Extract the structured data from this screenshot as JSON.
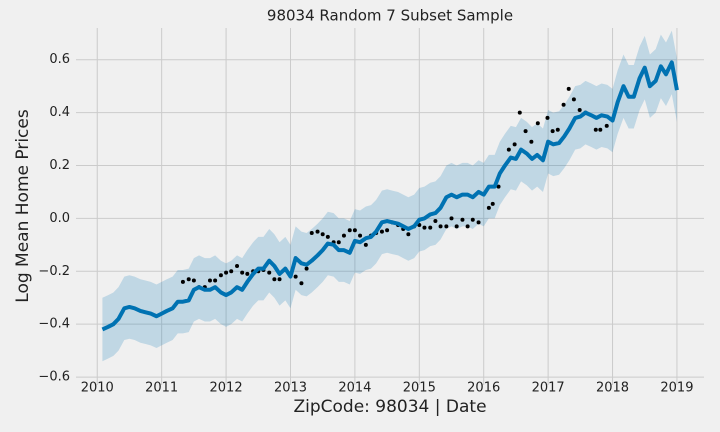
{
  "chart_data": {
    "type": "line",
    "title": "98034 Random 7 Subset Sample",
    "xlabel": "ZipCode: 98034 | Date",
    "ylabel": "Log Mean Home Prices",
    "xlim": [
      2009.67,
      2019.42
    ],
    "ylim": [
      -0.63,
      0.72
    ],
    "xticks": [
      2010,
      2011,
      2012,
      2013,
      2014,
      2015,
      2016,
      2017,
      2018,
      2019
    ],
    "yticks": [
      {
        "value": -0.6,
        "label": "−0.6"
      },
      {
        "value": -0.4,
        "label": "−0.4"
      },
      {
        "value": -0.2,
        "label": "−0.2"
      },
      {
        "value": 0,
        "label": "0.0"
      },
      0.2,
      0.4,
      0.6
    ],
    "grid": true,
    "x": [
      2010.08,
      2010.17,
      2010.25,
      2010.33,
      2010.42,
      2010.5,
      2010.58,
      2010.67,
      2010.75,
      2010.83,
      2010.92,
      2011,
      2011.08,
      2011.17,
      2011.25,
      2011.33,
      2011.42,
      2011.5,
      2011.58,
      2011.67,
      2011.75,
      2011.83,
      2011.92,
      2012,
      2012.08,
      2012.17,
      2012.25,
      2012.33,
      2012.42,
      2012.5,
      2012.58,
      2012.67,
      2012.75,
      2012.83,
      2012.92,
      2013,
      2013.08,
      2013.17,
      2013.25,
      2013.33,
      2013.42,
      2013.5,
      2013.58,
      2013.67,
      2013.75,
      2013.83,
      2013.92,
      2014,
      2014.08,
      2014.17,
      2014.25,
      2014.33,
      2014.42,
      2014.5,
      2014.58,
      2014.67,
      2014.75,
      2014.83,
      2014.92,
      2015,
      2015.08,
      2015.17,
      2015.25,
      2015.33,
      2015.42,
      2015.5,
      2015.58,
      2015.67,
      2015.75,
      2015.83,
      2015.92,
      2016,
      2016.08,
      2016.17,
      2016.25,
      2016.33,
      2016.42,
      2016.5,
      2016.58,
      2016.67,
      2016.75,
      2016.83,
      2016.92,
      2017,
      2017.08,
      2017.17,
      2017.25,
      2017.33,
      2017.42,
      2017.5,
      2017.58,
      2017.67,
      2017.75,
      2017.83,
      2017.92,
      2018,
      2018.08,
      2018.17,
      2018.25,
      2018.33,
      2018.42,
      2018.5,
      2018.58,
      2018.67,
      2018.75,
      2018.83,
      2018.92,
      2019
    ],
    "series": [
      {
        "color": "#0072B2",
        "values": [
          -0.42,
          -0.41,
          -0.4,
          -0.38,
          -0.34,
          -0.335,
          -0.34,
          -0.35,
          -0.355,
          -0.36,
          -0.37,
          -0.36,
          -0.35,
          -0.34,
          -0.315,
          -0.315,
          -0.31,
          -0.27,
          -0.26,
          -0.27,
          -0.27,
          -0.26,
          -0.28,
          -0.29,
          -0.28,
          -0.26,
          -0.27,
          -0.24,
          -0.21,
          -0.19,
          -0.19,
          -0.16,
          -0.18,
          -0.21,
          -0.19,
          -0.22,
          -0.15,
          -0.17,
          -0.175,
          -0.16,
          -0.14,
          -0.12,
          -0.095,
          -0.1,
          -0.12,
          -0.12,
          -0.13,
          -0.085,
          -0.09,
          -0.075,
          -0.07,
          -0.05,
          -0.015,
          -0.01,
          -0.015,
          -0.02,
          -0.03,
          -0.04,
          -0.03,
          -0.005,
          0,
          0.015,
          0.02,
          0.04,
          0.08,
          0.09,
          0.08,
          0.09,
          0.09,
          0.08,
          0.1,
          0.09,
          0.12,
          0.12,
          0.17,
          0.2,
          0.23,
          0.225,
          0.26,
          0.245,
          0.225,
          0.24,
          0.22,
          0.29,
          0.28,
          0.285,
          0.31,
          0.34,
          0.38,
          0.385,
          0.4,
          0.39,
          0.38,
          0.39,
          0.385,
          0.37,
          0.44,
          0.5,
          0.46,
          0.46,
          0.53,
          0.57,
          0.5,
          0.52,
          0.575,
          0.545,
          0.59,
          0.485
        ]
      }
    ],
    "band": {
      "color": "#0072B2",
      "lower": [
        -0.54,
        -0.53,
        -0.52,
        -0.5,
        -0.46,
        -0.455,
        -0.46,
        -0.47,
        -0.475,
        -0.48,
        -0.49,
        -0.48,
        -0.47,
        -0.46,
        -0.435,
        -0.435,
        -0.43,
        -0.39,
        -0.38,
        -0.39,
        -0.39,
        -0.38,
        -0.4,
        -0.41,
        -0.4,
        -0.38,
        -0.39,
        -0.36,
        -0.33,
        -0.31,
        -0.31,
        -0.28,
        -0.3,
        -0.33,
        -0.31,
        -0.34,
        -0.27,
        -0.29,
        -0.295,
        -0.28,
        -0.26,
        -0.24,
        -0.215,
        -0.22,
        -0.24,
        -0.24,
        -0.25,
        -0.205,
        -0.21,
        -0.195,
        -0.19,
        -0.17,
        -0.135,
        -0.13,
        -0.135,
        -0.14,
        -0.15,
        -0.16,
        -0.15,
        -0.125,
        -0.12,
        -0.105,
        -0.1,
        -0.08,
        -0.04,
        -0.03,
        -0.04,
        -0.03,
        -0.03,
        -0.04,
        -0.02,
        -0.03,
        0,
        0,
        0.05,
        0.08,
        0.11,
        0.105,
        0.14,
        0.125,
        0.105,
        0.12,
        0.1,
        0.17,
        0.16,
        0.165,
        0.19,
        0.22,
        0.26,
        0.265,
        0.28,
        0.27,
        0.26,
        0.27,
        0.265,
        0.25,
        0.32,
        0.38,
        0.34,
        0.34,
        0.41,
        0.45,
        0.38,
        0.4,
        0.455,
        0.425,
        0.47,
        0.365
      ],
      "upper": [
        -0.3,
        -0.29,
        -0.28,
        -0.26,
        -0.22,
        -0.215,
        -0.22,
        -0.23,
        -0.235,
        -0.24,
        -0.25,
        -0.24,
        -0.23,
        -0.22,
        -0.195,
        -0.195,
        -0.19,
        -0.15,
        -0.14,
        -0.15,
        -0.15,
        -0.14,
        -0.16,
        -0.17,
        -0.16,
        -0.14,
        -0.15,
        -0.12,
        -0.09,
        -0.07,
        -0.07,
        -0.04,
        -0.06,
        -0.09,
        -0.07,
        -0.1,
        -0.03,
        -0.05,
        -0.055,
        -0.04,
        -0.02,
        0,
        0.025,
        0.02,
        0,
        0,
        -0.01,
        0.035,
        0.03,
        0.045,
        0.05,
        0.07,
        0.105,
        0.11,
        0.105,
        0.1,
        0.09,
        0.08,
        0.09,
        0.115,
        0.12,
        0.135,
        0.14,
        0.16,
        0.2,
        0.21,
        0.2,
        0.21,
        0.21,
        0.2,
        0.22,
        0.21,
        0.24,
        0.24,
        0.29,
        0.32,
        0.35,
        0.345,
        0.38,
        0.365,
        0.345,
        0.36,
        0.34,
        0.41,
        0.4,
        0.405,
        0.43,
        0.46,
        0.5,
        0.505,
        0.52,
        0.51,
        0.5,
        0.51,
        0.505,
        0.49,
        0.56,
        0.62,
        0.58,
        0.58,
        0.65,
        0.69,
        0.62,
        0.64,
        0.695,
        0.665,
        0.71,
        0.605
      ]
    },
    "observed": {
      "color": "#000000",
      "x": [
        2011.33,
        2011.42,
        2011.5,
        2011.58,
        2011.67,
        2011.75,
        2011.83,
        2011.92,
        2012,
        2012.08,
        2012.17,
        2012.25,
        2012.33,
        2012.42,
        2012.5,
        2012.58,
        2012.67,
        2012.75,
        2012.83,
        2012.92,
        2013,
        2013.08,
        2013.17,
        2013.25,
        2013.33,
        2013.42,
        2013.5,
        2013.58,
        2013.67,
        2013.75,
        2013.83,
        2013.92,
        2014,
        2014.08,
        2014.17,
        2014.25,
        2014.33,
        2014.42,
        2014.5,
        2014.58,
        2014.67,
        2014.75,
        2014.83,
        2014.92,
        2015,
        2015.08,
        2015.17,
        2015.25,
        2015.33,
        2015.42,
        2015.5,
        2015.58,
        2015.67,
        2015.75,
        2015.83,
        2015.92,
        2016.08,
        2016.14,
        2016.23,
        2016.39,
        2016.48,
        2016.56,
        2016.65,
        2016.74,
        2016.84,
        2016.99,
        2017.07,
        2017.15,
        2017.24,
        2017.32,
        2017.4,
        2017.49,
        2017.58,
        2017.74,
        2017.81,
        2017.91
      ],
      "values": [
        -0.24,
        -0.23,
        -0.235,
        -0.26,
        -0.26,
        -0.235,
        -0.235,
        -0.215,
        -0.205,
        -0.2,
        -0.18,
        -0.205,
        -0.21,
        -0.2,
        -0.2,
        -0.195,
        -0.205,
        -0.23,
        -0.23,
        -0.195,
        -0.215,
        -0.22,
        -0.245,
        -0.19,
        -0.055,
        -0.05,
        -0.06,
        -0.07,
        -0.09,
        -0.09,
        -0.065,
        -0.045,
        -0.045,
        -0.065,
        -0.1,
        -0.065,
        -0.055,
        -0.05,
        -0.045,
        -0.015,
        -0.025,
        -0.04,
        -0.06,
        -0.03,
        -0.025,
        -0.035,
        -0.035,
        -0.01,
        -0.03,
        -0.03,
        0,
        -0.03,
        -0.005,
        -0.03,
        -0.005,
        -0.015,
        0.04,
        0.055,
        0.12,
        0.26,
        0.28,
        0.4,
        0.33,
        0.29,
        0.36,
        0.38,
        0.33,
        0.335,
        0.43,
        0.49,
        0.45,
        0.41,
        0.4,
        0.335,
        0.335,
        0.35
      ]
    }
  }
}
